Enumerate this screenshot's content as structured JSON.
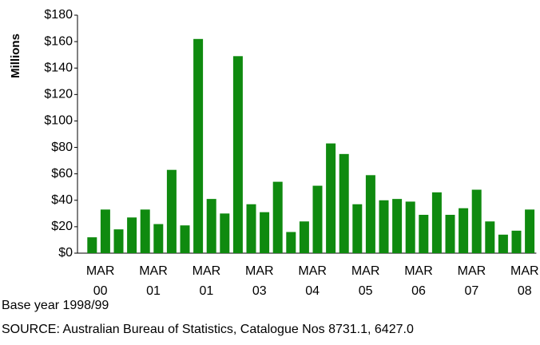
{
  "chart_data": {
    "type": "bar",
    "y_label": "Millions",
    "categories": [
      null,
      "MAR 00",
      null,
      null,
      null,
      "MAR 01",
      null,
      null,
      null,
      "MAR 01",
      null,
      null,
      null,
      "MAR 03",
      null,
      null,
      null,
      "MAR 04",
      null,
      null,
      null,
      "MAR 05",
      null,
      null,
      null,
      "MAR 06",
      null,
      null,
      null,
      "MAR 07",
      null,
      null,
      null,
      "MAR 08"
    ],
    "values": [
      12,
      33,
      18,
      27,
      33,
      22,
      63,
      21,
      162,
      41,
      30,
      149,
      37,
      31,
      54,
      16,
      24,
      51,
      83,
      75,
      37,
      59,
      40,
      41,
      39,
      29,
      46,
      29,
      34,
      48,
      24,
      14,
      17,
      33
    ],
    "color": "#0f8a0f",
    "ylim": [
      0,
      180
    ],
    "yticks": [
      {
        "value": 0,
        "label": "$0"
      },
      {
        "value": 20,
        "label": "$20"
      },
      {
        "value": 40,
        "label": "$40"
      },
      {
        "value": 60,
        "label": "$60"
      },
      {
        "value": 80,
        "label": "$80"
      },
      {
        "value": 100,
        "label": "$100"
      },
      {
        "value": 120,
        "label": "$120"
      },
      {
        "value": 140,
        "label": "$140"
      },
      {
        "value": 160,
        "label": "$160"
      },
      {
        "value": 180,
        "label": "$180"
      }
    ],
    "notes": [
      "Base year 1998/99",
      "SOURCE:  Australian Bureau of Statistics, Catalogue Nos 8731.1, 6427.0"
    ]
  }
}
